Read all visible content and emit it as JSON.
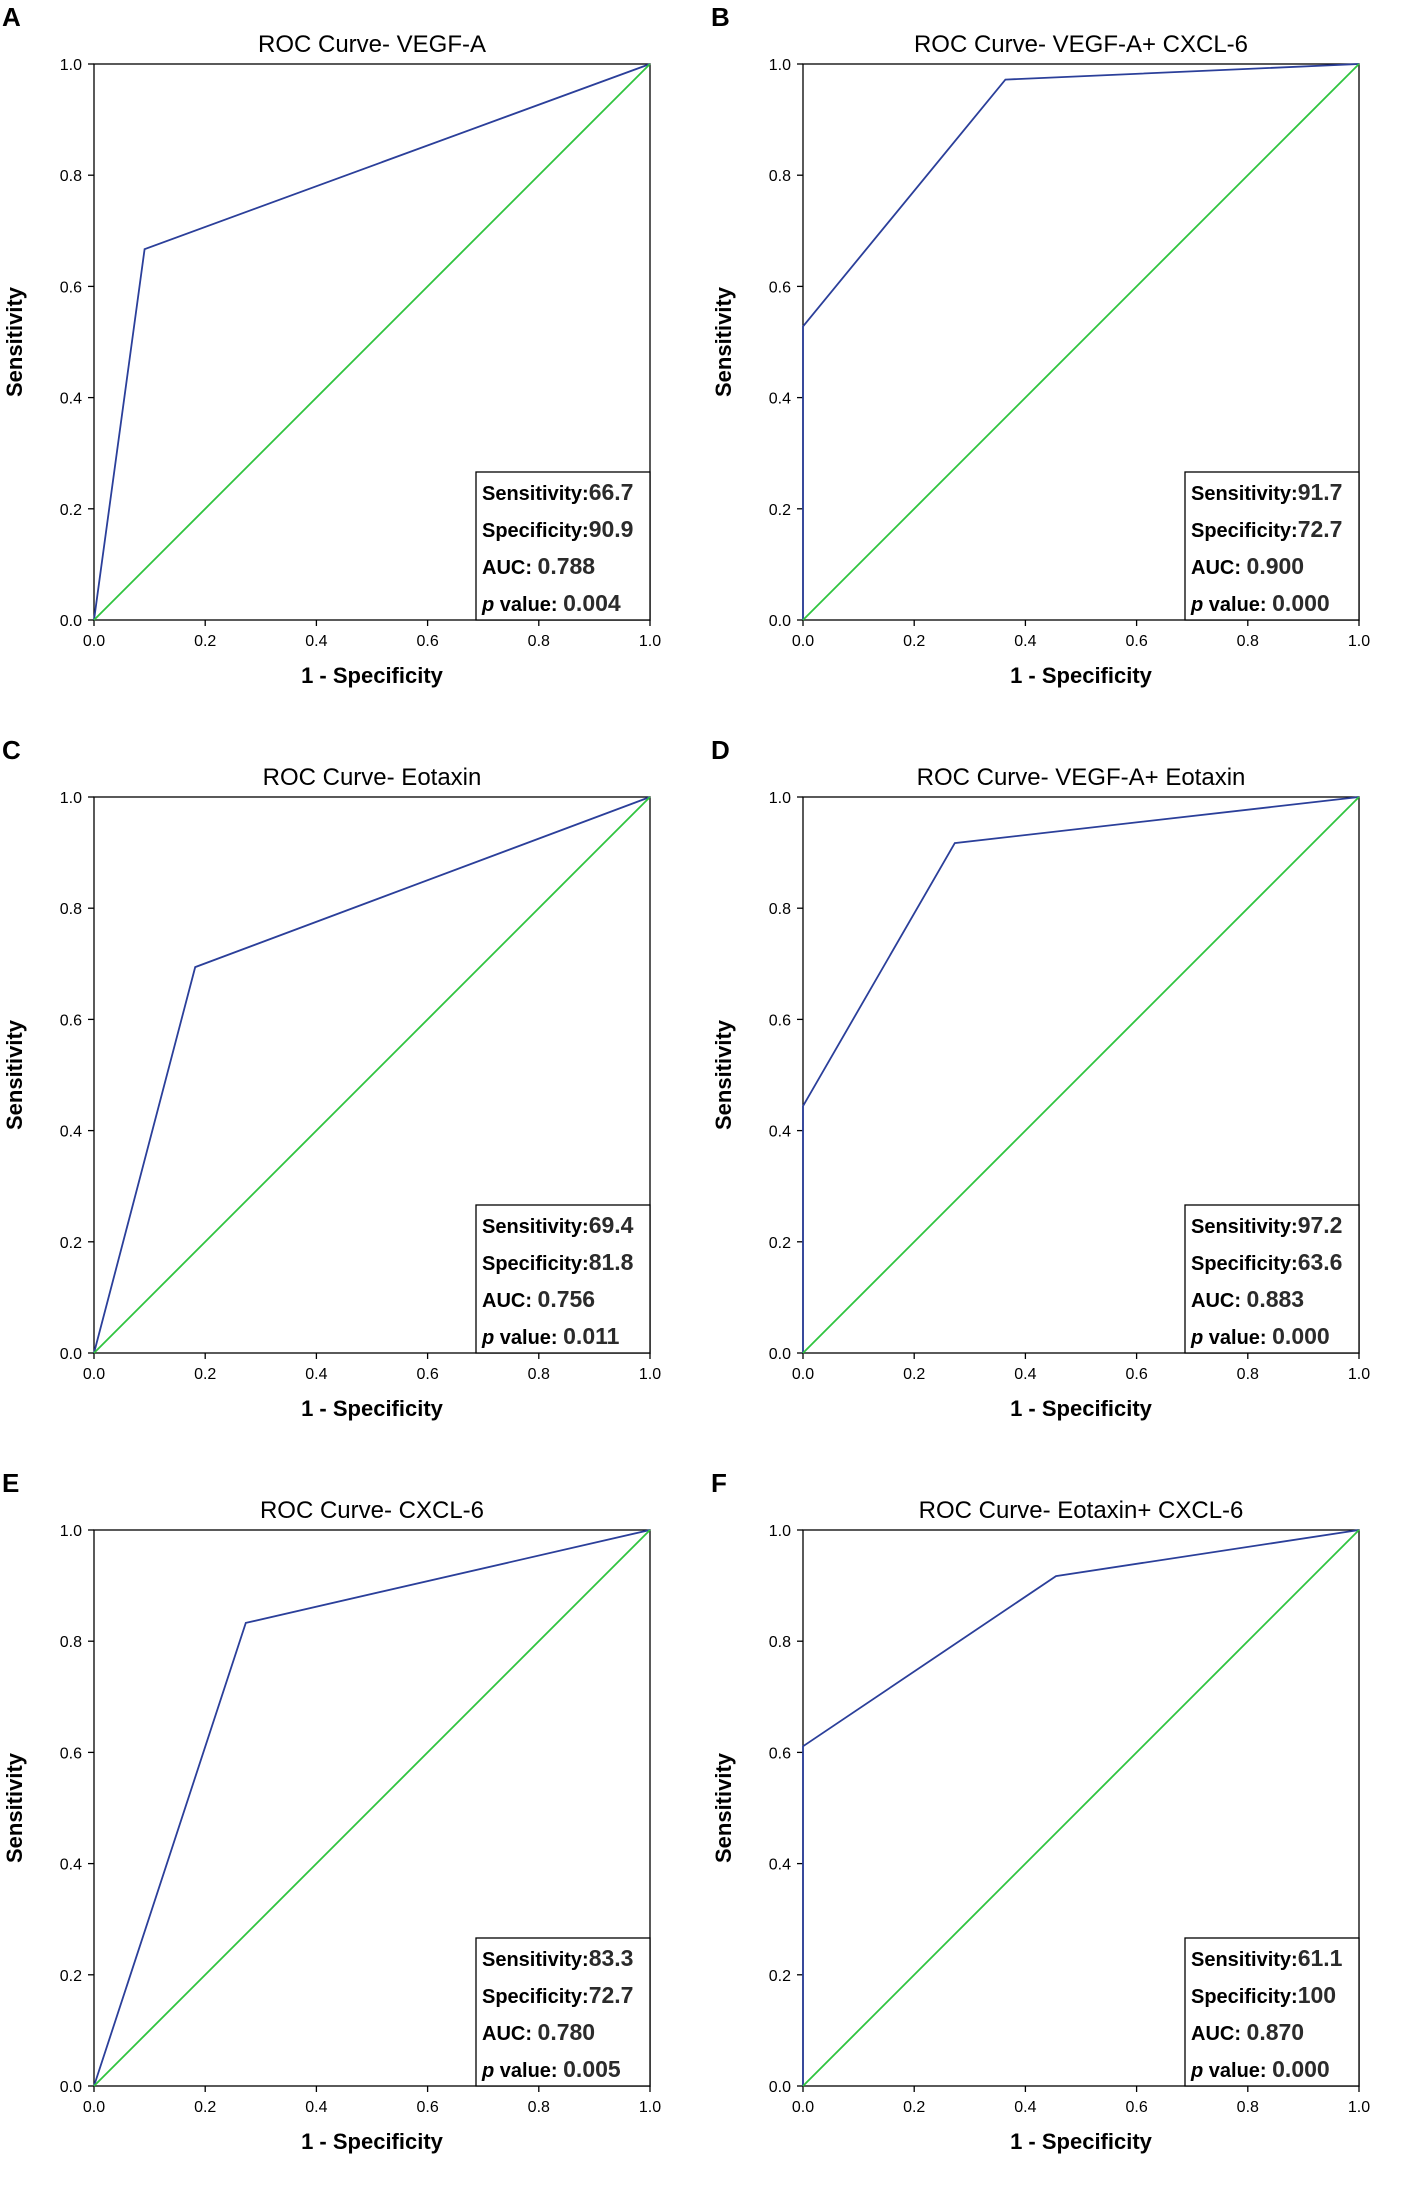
{
  "figure": {
    "xlabel": "1 - Specificity",
    "ylabel": "Sensitivity",
    "tick_labels": [
      "0.0",
      "0.2",
      "0.4",
      "0.6",
      "0.8",
      "1.0"
    ],
    "stats_labels": {
      "sensitivity": "Sensitivity:",
      "specificity": "Specificity:",
      "auc": "AUC:",
      "p_italic": "p",
      "p_rest": " value:"
    }
  },
  "colors": {
    "roc": "#2b3f9a",
    "reference": "#2fc43f",
    "axis": "#000000"
  },
  "chart_data": [
    {
      "letter": "A",
      "type": "line",
      "title": "ROC Curve- VEGF-A",
      "xlabel": "1 - Specificity",
      "ylabel": "Sensitivity",
      "xlim": [
        0,
        1
      ],
      "ylim": [
        0,
        1
      ],
      "series": [
        {
          "name": "ROC",
          "x": [
            0,
            0.091,
            1
          ],
          "y": [
            0,
            0.667,
            1
          ]
        },
        {
          "name": "Reference",
          "x": [
            0,
            1
          ],
          "y": [
            0,
            1
          ]
        }
      ],
      "stats": {
        "sensitivity": "66.7",
        "specificity": "90.9",
        "auc": "0.788",
        "p": "0.004"
      }
    },
    {
      "letter": "B",
      "type": "line",
      "title": "ROC Curve- VEGF-A+ CXCL-6",
      "xlabel": "1 - Specificity",
      "ylabel": "Sensitivity",
      "xlim": [
        0,
        1
      ],
      "ylim": [
        0,
        1
      ],
      "series": [
        {
          "name": "ROC",
          "x": [
            0,
            0,
            0.364,
            1
          ],
          "y": [
            0,
            0.528,
            0.972,
            1
          ]
        },
        {
          "name": "Reference",
          "x": [
            0,
            1
          ],
          "y": [
            0,
            1
          ]
        }
      ],
      "stats": {
        "sensitivity": "91.7",
        "specificity": "72.7",
        "auc": "0.900",
        "p": "0.000"
      }
    },
    {
      "letter": "C",
      "type": "line",
      "title": "ROC Curve- Eotaxin",
      "xlabel": "1 - Specificity",
      "ylabel": "Sensitivity",
      "xlim": [
        0,
        1
      ],
      "ylim": [
        0,
        1
      ],
      "series": [
        {
          "name": "ROC",
          "x": [
            0,
            0.182,
            1
          ],
          "y": [
            0,
            0.694,
            1
          ]
        },
        {
          "name": "Reference",
          "x": [
            0,
            1
          ],
          "y": [
            0,
            1
          ]
        }
      ],
      "stats": {
        "sensitivity": "69.4",
        "specificity": "81.8",
        "auc": "0.756",
        "p": "0.011"
      }
    },
    {
      "letter": "D",
      "type": "line",
      "title": "ROC Curve- VEGF-A+ Eotaxin",
      "xlabel": "1 - Specificity",
      "ylabel": "Sensitivity",
      "xlim": [
        0,
        1
      ],
      "ylim": [
        0,
        1
      ],
      "series": [
        {
          "name": "ROC",
          "x": [
            0,
            0,
            0.273,
            1
          ],
          "y": [
            0,
            0.444,
            0.917,
            1
          ]
        },
        {
          "name": "Reference",
          "x": [
            0,
            1
          ],
          "y": [
            0,
            1
          ]
        }
      ],
      "stats": {
        "sensitivity": "97.2",
        "specificity": "63.6",
        "auc": "0.883",
        "p": "0.000"
      }
    },
    {
      "letter": "E",
      "type": "line",
      "title": "ROC Curve- CXCL-6",
      "xlabel": "1 - Specificity",
      "ylabel": "Sensitivity",
      "xlim": [
        0,
        1
      ],
      "ylim": [
        0,
        1
      ],
      "series": [
        {
          "name": "ROC",
          "x": [
            0,
            0.273,
            1
          ],
          "y": [
            0,
            0.833,
            1
          ]
        },
        {
          "name": "Reference",
          "x": [
            0,
            1
          ],
          "y": [
            0,
            1
          ]
        }
      ],
      "stats": {
        "sensitivity": "83.3",
        "specificity": "72.7",
        "auc": "0.780",
        "p": "0.005"
      }
    },
    {
      "letter": "F",
      "type": "line",
      "title": "ROC Curve- Eotaxin+ CXCL-6",
      "xlabel": "1 - Specificity",
      "ylabel": "Sensitivity",
      "xlim": [
        0,
        1
      ],
      "ylim": [
        0,
        1
      ],
      "series": [
        {
          "name": "ROC",
          "x": [
            0,
            0,
            0.455,
            1
          ],
          "y": [
            0,
            0.611,
            0.917,
            1
          ]
        },
        {
          "name": "Reference",
          "x": [
            0,
            1
          ],
          "y": [
            0,
            1
          ]
        }
      ],
      "stats": {
        "sensitivity": "61.1",
        "specificity": "100",
        "auc": "0.870",
        "p": "0.000"
      }
    }
  ]
}
